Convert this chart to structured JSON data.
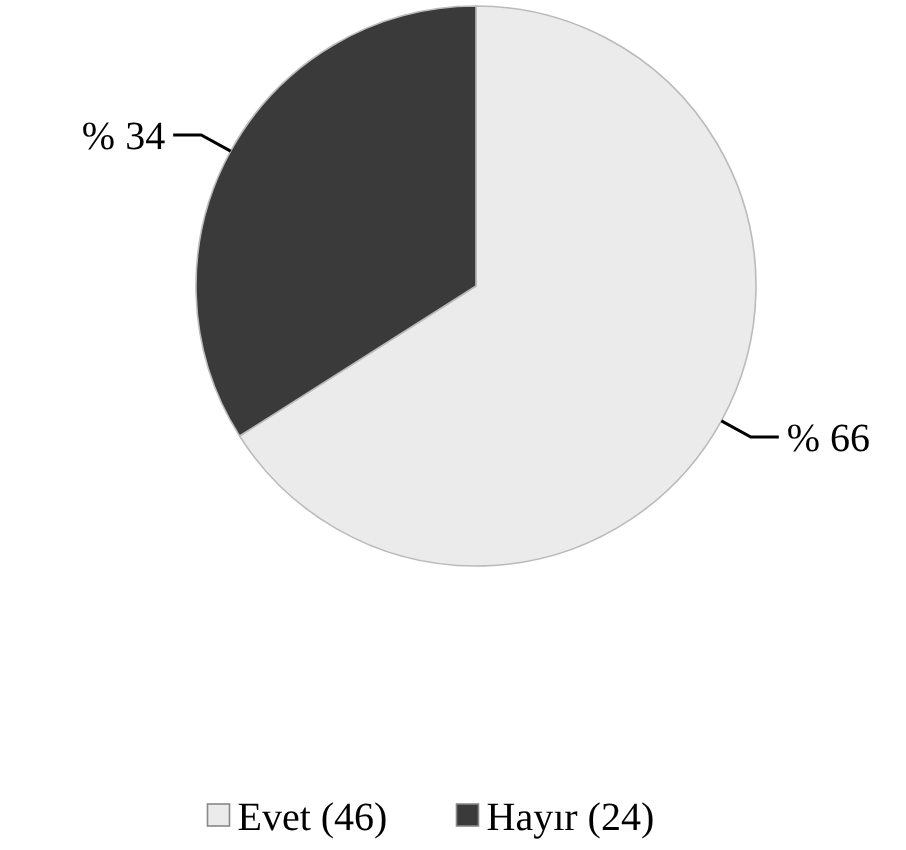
{
  "chart_data": {
    "type": "pie",
    "categories": [
      "Evet (46)",
      "Hayır (24)"
    ],
    "values": [
      66,
      34
    ],
    "colors": [
      "#ebebeb",
      "#3a3a3a"
    ],
    "value_labels": [
      "% 66",
      "% 34"
    ],
    "legend": "bottom"
  }
}
